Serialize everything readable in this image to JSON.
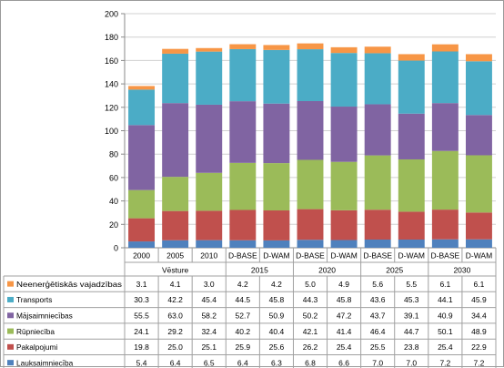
{
  "chart_data": {
    "type": "bar",
    "stacked": true,
    "title": "",
    "xlabel": "",
    "ylabel": "",
    "ylim": [
      0,
      200
    ],
    "yticks": [
      0,
      20,
      40,
      60,
      80,
      100,
      120,
      140,
      160,
      180,
      200
    ],
    "grid": true,
    "legend_position": "table-left",
    "categories": [
      "2000",
      "2005",
      "2010",
      "D-BASE",
      "D-WAM",
      "D-BASE",
      "D-WAM",
      "D-BASE",
      "D-WAM",
      "D-BASE",
      "D-WAM"
    ],
    "groups": [
      {
        "label": "Vēsture",
        "span": 3
      },
      {
        "label": "2015",
        "span": 2
      },
      {
        "label": "2020",
        "span": 2
      },
      {
        "label": "2025",
        "span": 2
      },
      {
        "label": "2030",
        "span": 2
      }
    ],
    "series": [
      {
        "name": "Neenerģētiskās vajadzības",
        "color": "#F79646",
        "values": [
          3.1,
          4.1,
          3.0,
          4.2,
          4.2,
          5.0,
          4.9,
          5.6,
          5.5,
          6.1,
          6.1
        ]
      },
      {
        "name": "Transports",
        "color": "#4BACC6",
        "values": [
          30.3,
          42.2,
          45.4,
          44.5,
          45.8,
          44.3,
          45.8,
          43.6,
          45.3,
          44.1,
          45.9
        ]
      },
      {
        "name": "Mājsaimniecības",
        "color": "#8064A2",
        "values": [
          55.5,
          63.0,
          58.2,
          52.7,
          50.9,
          50.2,
          47.2,
          43.7,
          39.1,
          40.9,
          34.4
        ]
      },
      {
        "name": "Rūpniecība",
        "color": "#9BBB59",
        "values": [
          24.1,
          29.2,
          32.4,
          40.2,
          40.4,
          42.1,
          41.4,
          46.4,
          44.7,
          50.1,
          48.9
        ]
      },
      {
        "name": "Pakalpojumi",
        "color": "#C0504D",
        "values": [
          19.8,
          25.0,
          25.1,
          25.9,
          25.6,
          26.2,
          25.4,
          25.5,
          23.8,
          25.4,
          22.9
        ]
      },
      {
        "name": "Lauksaimniecība",
        "color": "#4F81BD",
        "values": [
          5.4,
          6.4,
          6.5,
          6.4,
          6.3,
          6.8,
          6.6,
          7.0,
          7.0,
          7.2,
          7.2
        ]
      }
    ],
    "stack_order_bottom_to_top": [
      "Lauksaimniecība",
      "Pakalpojumi",
      "Rūpniecība",
      "Mājsaimniecības",
      "Transports",
      "Neenerģētiskās vajadzības"
    ]
  }
}
